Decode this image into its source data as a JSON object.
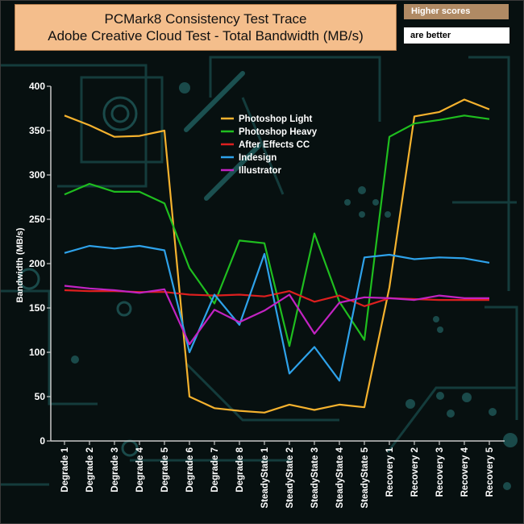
{
  "notes": {
    "top": "Higher scores",
    "bottom": "are better"
  },
  "colors": {
    "background": "#071010",
    "circuit": "#1a4c4c",
    "axis": "#c8c8c8",
    "title_bg": "#f4be8c"
  },
  "chart_data": {
    "type": "line",
    "title": "PCMark8 Consistency Test Trace",
    "subtitle": "Adobe Creative Cloud Test - Total Bandwidth (MB/s)",
    "xlabel": "",
    "ylabel": "Bandwidth (MB/s)",
    "ylim": [
      0,
      400
    ],
    "yticks": [
      0,
      50,
      100,
      150,
      200,
      250,
      300,
      350,
      400
    ],
    "grid": false,
    "legend_position": "top-center",
    "categories": [
      "Degrade 1",
      "Degrade 2",
      "Degrade 3",
      "Degrade 4",
      "Degrade 5",
      "Degrade 6",
      "Degrade 7",
      "Degrade 8",
      "SteadyState 1",
      "SteadyState 2",
      "SteadyState 3",
      "SteadyState 4",
      "SteadyState 5",
      "Recovery 1",
      "Recovery 2",
      "Recovery 3",
      "Recovery 4",
      "Recovery 5"
    ],
    "series": [
      {
        "name": "Photoshop Light",
        "color": "#f5b22e",
        "values": [
          367,
          356,
          343,
          344,
          350,
          50,
          37,
          34,
          32,
          41,
          35,
          41,
          38,
          173,
          366,
          371,
          385,
          374
        ]
      },
      {
        "name": "Photoshop Heavy",
        "color": "#1fbe1f",
        "values": [
          278,
          290,
          281,
          281,
          268,
          195,
          155,
          226,
          223,
          107,
          234,
          157,
          114,
          343,
          358,
          362,
          367,
          363
        ]
      },
      {
        "name": "After Effects CC",
        "color": "#dd1f1f",
        "values": [
          170,
          169,
          169,
          168,
          168,
          165,
          164,
          165,
          163,
          169,
          157,
          164,
          152,
          161,
          160,
          159,
          159,
          159
        ]
      },
      {
        "name": "Indesign",
        "color": "#2ea2ea",
        "values": [
          212,
          220,
          217,
          220,
          215,
          100,
          165,
          131,
          211,
          76,
          106,
          68,
          207,
          210,
          205,
          207,
          206,
          201
        ]
      },
      {
        "name": "Illustrator",
        "color": "#c223c2",
        "values": [
          175,
          172,
          170,
          167,
          171,
          109,
          148,
          134,
          147,
          165,
          121,
          156,
          162,
          161,
          159,
          164,
          161,
          161
        ]
      }
    ]
  }
}
